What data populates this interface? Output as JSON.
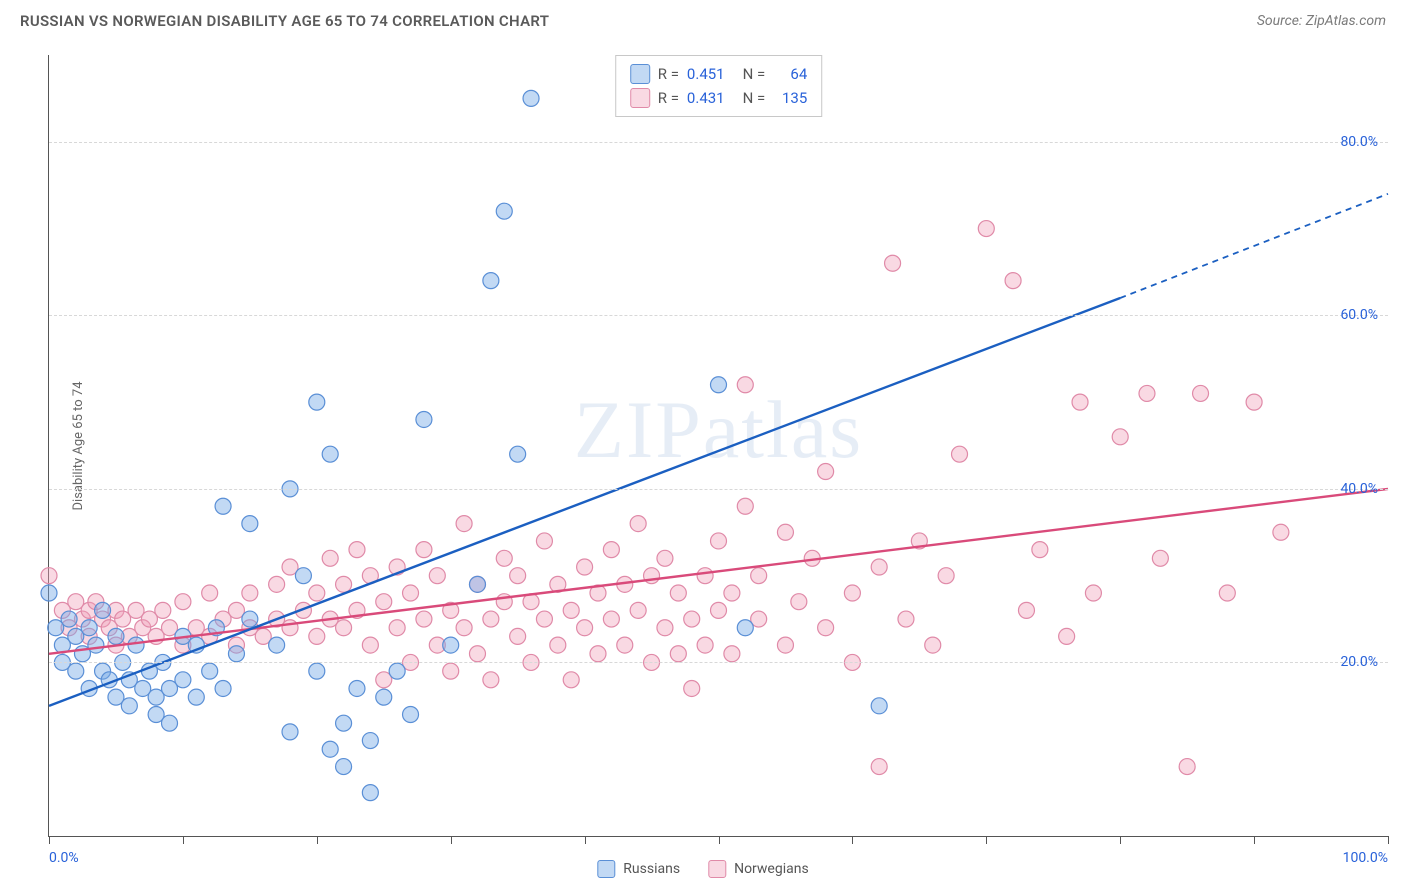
{
  "title": "RUSSIAN VS NORWEGIAN DISABILITY AGE 65 TO 74 CORRELATION CHART",
  "source": "Source: ZipAtlas.com",
  "watermark": "ZIPatlas",
  "y_axis_label": "Disability Age 65 to 74",
  "chart": {
    "type": "scatter",
    "xlim": [
      0,
      100
    ],
    "ylim": [
      0,
      90
    ],
    "x_ticks": [
      0,
      10,
      20,
      30,
      40,
      50,
      60,
      70,
      80,
      90,
      100
    ],
    "x_tick_labels": {
      "0": "0.0%",
      "100": "100.0%"
    },
    "y_gridlines": [
      20,
      40,
      60,
      80
    ],
    "y_tick_labels": {
      "20": "20.0%",
      "40": "40.0%",
      "60": "60.0%",
      "80": "80.0%"
    },
    "background_color": "#ffffff",
    "grid_color": "#d8d8d8",
    "axis_color": "#555555",
    "tick_label_color": "#2962d9",
    "marker_radius": 8,
    "marker_stroke_width": 1.2,
    "line_width": 2.4
  },
  "series": {
    "russians": {
      "label": "Russians",
      "fill_color": "rgba(120,170,230,0.45)",
      "stroke_color": "#5a8fd6",
      "line_color": "#1b5fc1",
      "R": "0.451",
      "N": "64",
      "trend": {
        "x1": 0,
        "y1": 15,
        "x2": 80,
        "y2": 62,
        "dash_x2": 100,
        "dash_y2": 74
      },
      "points": [
        [
          0,
          28
        ],
        [
          0.5,
          24
        ],
        [
          1,
          22
        ],
        [
          1,
          20
        ],
        [
          1.5,
          25
        ],
        [
          2,
          23
        ],
        [
          2,
          19
        ],
        [
          2.5,
          21
        ],
        [
          3,
          24
        ],
        [
          3,
          17
        ],
        [
          3.5,
          22
        ],
        [
          4,
          26
        ],
        [
          4,
          19
        ],
        [
          4.5,
          18
        ],
        [
          5,
          23
        ],
        [
          5,
          16
        ],
        [
          5.5,
          20
        ],
        [
          6,
          18
        ],
        [
          6,
          15
        ],
        [
          6.5,
          22
        ],
        [
          7,
          17
        ],
        [
          7.5,
          19
        ],
        [
          8,
          16
        ],
        [
          8,
          14
        ],
        [
          8.5,
          20
        ],
        [
          9,
          17
        ],
        [
          9,
          13
        ],
        [
          10,
          23
        ],
        [
          10,
          18
        ],
        [
          11,
          16
        ],
        [
          11,
          22
        ],
        [
          12,
          19
        ],
        [
          12.5,
          24
        ],
        [
          13,
          17
        ],
        [
          13,
          38
        ],
        [
          14,
          21
        ],
        [
          15,
          36
        ],
        [
          15,
          25
        ],
        [
          17,
          22
        ],
        [
          18,
          40
        ],
        [
          18,
          12
        ],
        [
          19,
          30
        ],
        [
          20,
          50
        ],
        [
          20,
          19
        ],
        [
          21,
          44
        ],
        [
          21,
          10
        ],
        [
          22,
          13
        ],
        [
          22,
          8
        ],
        [
          23,
          17
        ],
        [
          24,
          11
        ],
        [
          24,
          5
        ],
        [
          25,
          16
        ],
        [
          26,
          19
        ],
        [
          27,
          14
        ],
        [
          28,
          48
        ],
        [
          30,
          22
        ],
        [
          32,
          29
        ],
        [
          33,
          64
        ],
        [
          34,
          72
        ],
        [
          35,
          44
        ],
        [
          36,
          85
        ],
        [
          50,
          52
        ],
        [
          52,
          24
        ],
        [
          62,
          15
        ]
      ]
    },
    "norwegians": {
      "label": "Norwegians",
      "fill_color": "rgba(240,160,185,0.40)",
      "stroke_color": "#e08aa8",
      "line_color": "#d94a7a",
      "R": "0.431",
      "N": "135",
      "trend": {
        "x1": 0,
        "y1": 21,
        "x2": 100,
        "y2": 40
      },
      "points": [
        [
          0,
          30
        ],
        [
          1,
          26
        ],
        [
          1.5,
          24
        ],
        [
          2,
          27
        ],
        [
          2.5,
          25
        ],
        [
          3,
          26
        ],
        [
          3,
          23
        ],
        [
          3.5,
          27
        ],
        [
          4,
          25
        ],
        [
          4.5,
          24
        ],
        [
          5,
          26
        ],
        [
          5,
          22
        ],
        [
          5.5,
          25
        ],
        [
          6,
          23
        ],
        [
          6.5,
          26
        ],
        [
          7,
          24
        ],
        [
          7.5,
          25
        ],
        [
          8,
          23
        ],
        [
          8.5,
          26
        ],
        [
          9,
          24
        ],
        [
          10,
          22
        ],
        [
          10,
          27
        ],
        [
          11,
          24
        ],
        [
          12,
          23
        ],
        [
          12,
          28
        ],
        [
          13,
          25
        ],
        [
          14,
          22
        ],
        [
          14,
          26
        ],
        [
          15,
          24
        ],
        [
          15,
          28
        ],
        [
          16,
          23
        ],
        [
          17,
          25
        ],
        [
          17,
          29
        ],
        [
          18,
          24
        ],
        [
          18,
          31
        ],
        [
          19,
          26
        ],
        [
          20,
          23
        ],
        [
          20,
          28
        ],
        [
          21,
          25
        ],
        [
          21,
          32
        ],
        [
          22,
          24
        ],
        [
          22,
          29
        ],
        [
          23,
          26
        ],
        [
          23,
          33
        ],
        [
          24,
          22
        ],
        [
          24,
          30
        ],
        [
          25,
          27
        ],
        [
          25,
          18
        ],
        [
          26,
          24
        ],
        [
          26,
          31
        ],
        [
          27,
          20
        ],
        [
          27,
          28
        ],
        [
          28,
          25
        ],
        [
          28,
          33
        ],
        [
          29,
          22
        ],
        [
          29,
          30
        ],
        [
          30,
          26
        ],
        [
          30,
          19
        ],
        [
          31,
          24
        ],
        [
          31,
          36
        ],
        [
          32,
          21
        ],
        [
          32,
          29
        ],
        [
          33,
          25
        ],
        [
          33,
          18
        ],
        [
          34,
          27
        ],
        [
          34,
          32
        ],
        [
          35,
          23
        ],
        [
          35,
          30
        ],
        [
          36,
          20
        ],
        [
          36,
          27
        ],
        [
          37,
          25
        ],
        [
          37,
          34
        ],
        [
          38,
          22
        ],
        [
          38,
          29
        ],
        [
          39,
          26
        ],
        [
          39,
          18
        ],
        [
          40,
          24
        ],
        [
          40,
          31
        ],
        [
          41,
          21
        ],
        [
          41,
          28
        ],
        [
          42,
          25
        ],
        [
          42,
          33
        ],
        [
          43,
          22
        ],
        [
          43,
          29
        ],
        [
          44,
          26
        ],
        [
          44,
          36
        ],
        [
          45,
          20
        ],
        [
          45,
          30
        ],
        [
          46,
          24
        ],
        [
          46,
          32
        ],
        [
          47,
          21
        ],
        [
          47,
          28
        ],
        [
          48,
          25
        ],
        [
          48,
          17
        ],
        [
          49,
          22
        ],
        [
          49,
          30
        ],
        [
          50,
          26
        ],
        [
          50,
          34
        ],
        [
          51,
          21
        ],
        [
          51,
          28
        ],
        [
          52,
          38
        ],
        [
          52,
          52
        ],
        [
          53,
          25
        ],
        [
          53,
          30
        ],
        [
          55,
          22
        ],
        [
          55,
          35
        ],
        [
          56,
          27
        ],
        [
          57,
          32
        ],
        [
          58,
          24
        ],
        [
          58,
          42
        ],
        [
          60,
          28
        ],
        [
          60,
          20
        ],
        [
          62,
          31
        ],
        [
          62,
          8
        ],
        [
          63,
          66
        ],
        [
          64,
          25
        ],
        [
          65,
          34
        ],
        [
          66,
          22
        ],
        [
          67,
          30
        ],
        [
          68,
          44
        ],
        [
          70,
          70
        ],
        [
          72,
          64
        ],
        [
          73,
          26
        ],
        [
          74,
          33
        ],
        [
          76,
          23
        ],
        [
          77,
          50
        ],
        [
          78,
          28
        ],
        [
          80,
          46
        ],
        [
          82,
          51
        ],
        [
          83,
          32
        ],
        [
          85,
          8
        ],
        [
          86,
          51
        ],
        [
          88,
          28
        ],
        [
          90,
          50
        ],
        [
          92,
          35
        ]
      ]
    }
  },
  "stats_labels": {
    "R": "R =",
    "N": "N ="
  }
}
